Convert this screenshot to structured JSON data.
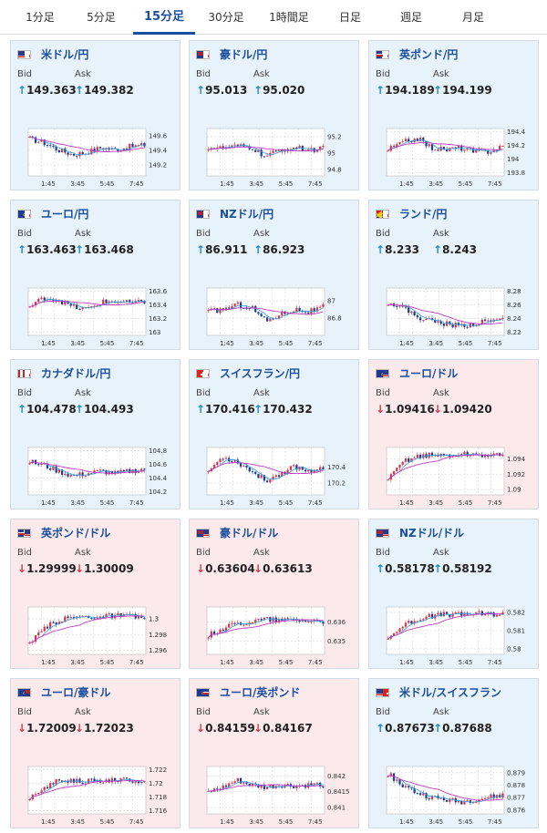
{
  "tabs": [
    {
      "label": "1分足",
      "active": false
    },
    {
      "label": "5分足",
      "active": false
    },
    {
      "label": "15分足",
      "active": true
    },
    {
      "label": "30分足",
      "active": false
    },
    {
      "label": "1時間足",
      "active": false
    },
    {
      "label": "日足",
      "active": false
    },
    {
      "label": "週足",
      "active": false
    },
    {
      "label": "月足",
      "active": false
    }
  ],
  "labels": {
    "bid": "Bid",
    "ask": "Ask"
  },
  "colors": {
    "up_arrow": "#1f8cc9",
    "down_arrow": "#d4394a",
    "candle_up": "#d4394a",
    "candle_down": "#1a3f9a",
    "ma_long": "#c13ac0",
    "ma_short": "#33a0d8",
    "title": "#1a4fa0"
  },
  "pairs": [
    {
      "name": "米ドル/円",
      "flag": "us",
      "bg": "blue",
      "dir": "up",
      "arrow": "↑",
      "bid": "149.363",
      "ask": "149.382",
      "chart_data": {
        "type": "candlestick",
        "x_ticks": [
          "1:45",
          "3:45",
          "5:45",
          "7:45"
        ],
        "y_ticks": [
          "149.6",
          "149.4",
          "149.2"
        ],
        "ylim": [
          149.05,
          149.7
        ],
        "trend": [
          0.78,
          0.7,
          0.55,
          0.45,
          0.5,
          0.6,
          0.55,
          0.62,
          0.65
        ]
      }
    },
    {
      "name": "豪ドル/円",
      "flag": "au",
      "bg": "blue",
      "dir": "up",
      "arrow": "↑",
      "bid": "95.013",
      "ask": "95.020",
      "chart_data": {
        "type": "candlestick",
        "x_ticks": [
          "1:45",
          "3:45",
          "5:45",
          "7:45"
        ],
        "y_ticks": [
          "95.2",
          "95",
          "94.8"
        ],
        "ylim": [
          94.72,
          95.3
        ],
        "trend": [
          0.6,
          0.58,
          0.62,
          0.6,
          0.4,
          0.55,
          0.6,
          0.55,
          0.58
        ]
      }
    },
    {
      "name": "英ポンド/円",
      "flag": "gb",
      "bg": "blue",
      "dir": "up",
      "arrow": "↑",
      "bid": "194.189",
      "ask": "194.199",
      "chart_data": {
        "type": "candlestick",
        "x_ticks": [
          "1:45",
          "3:45",
          "5:45",
          "7:45"
        ],
        "y_ticks": [
          "194.4",
          "194.2",
          "194",
          "193.8"
        ],
        "ylim": [
          193.75,
          194.45
        ],
        "trend": [
          0.55,
          0.7,
          0.8,
          0.6,
          0.55,
          0.6,
          0.5,
          0.52,
          0.62
        ]
      }
    },
    {
      "name": "ユーロ/円",
      "flag": "eu",
      "bg": "blue",
      "dir": "up",
      "arrow": "↑",
      "bid": "163.463",
      "ask": "163.468",
      "chart_data": {
        "type": "candlestick",
        "x_ticks": [
          "1:45",
          "3:45",
          "5:45",
          "7:45"
        ],
        "y_ticks": [
          "163.6",
          "163.4",
          "163.2",
          "163"
        ],
        "ylim": [
          162.95,
          163.65
        ],
        "trend": [
          0.6,
          0.8,
          0.75,
          0.6,
          0.55,
          0.7,
          0.72,
          0.68,
          0.7
        ]
      }
    },
    {
      "name": "NZドル/円",
      "flag": "nz",
      "bg": "blue",
      "dir": "up",
      "arrow": "↑",
      "bid": "86.911",
      "ask": "86.923",
      "chart_data": {
        "type": "candlestick",
        "x_ticks": [
          "1:45",
          "3:45",
          "5:45",
          "7:45"
        ],
        "y_ticks": [
          "87",
          "86.8"
        ],
        "ylim": [
          86.6,
          87.15
        ],
        "trend": [
          0.5,
          0.55,
          0.65,
          0.6,
          0.3,
          0.45,
          0.55,
          0.5,
          0.6
        ]
      }
    },
    {
      "name": "ランド/円",
      "flag": "za",
      "bg": "blue",
      "dir": "up",
      "arrow": "↑",
      "bid": "8.233",
      "ask": "8.243",
      "chart_data": {
        "type": "candlestick",
        "x_ticks": [
          "1:45",
          "3:45",
          "5:45",
          "7:45"
        ],
        "y_ticks": [
          "8.28",
          "8.26",
          "8.24",
          "8.22"
        ],
        "ylim": [
          8.215,
          8.285
        ],
        "trend": [
          0.7,
          0.6,
          0.4,
          0.3,
          0.25,
          0.2,
          0.25,
          0.3,
          0.35
        ]
      }
    },
    {
      "name": "カナダドル/円",
      "flag": "ca",
      "bg": "blue",
      "dir": "up",
      "arrow": "↑",
      "bid": "104.478",
      "ask": "104.493",
      "chart_data": {
        "type": "candlestick",
        "x_ticks": [
          "1:45",
          "3:45",
          "5:45",
          "7:45"
        ],
        "y_ticks": [
          "104.8",
          "104.6",
          "104.4",
          "104.2"
        ],
        "ylim": [
          104.15,
          104.85
        ],
        "trend": [
          0.7,
          0.62,
          0.5,
          0.4,
          0.45,
          0.5,
          0.45,
          0.5,
          0.55
        ]
      }
    },
    {
      "name": "スイスフラン/円",
      "flag": "ch",
      "bg": "blue",
      "dir": "up",
      "arrow": "↑",
      "bid": "170.416",
      "ask": "170.432",
      "chart_data": {
        "type": "candlestick",
        "x_ticks": [
          "1:45",
          "3:45",
          "5:45",
          "7:45"
        ],
        "y_ticks": [
          "170.4",
          "170.2"
        ],
        "ylim": [
          170.05,
          170.65
        ],
        "trend": [
          0.5,
          0.8,
          0.7,
          0.5,
          0.3,
          0.45,
          0.6,
          0.5,
          0.6
        ]
      }
    },
    {
      "name": "ユーロ/ドル",
      "flag": "euus",
      "bg": "pink",
      "dir": "down",
      "arrow": "↓",
      "bid": "1.09416",
      "ask": "1.09420",
      "chart_data": {
        "type": "candlestick",
        "x_ticks": [
          "1:45",
          "3:45",
          "5:45",
          "7:45"
        ],
        "y_ticks": [
          "1.094",
          "1.092",
          "1.09"
        ],
        "ylim": [
          1.0893,
          1.0955
        ],
        "trend": [
          0.3,
          0.7,
          0.82,
          0.84,
          0.83,
          0.86,
          0.85,
          0.84,
          0.82
        ]
      }
    },
    {
      "name": "英ポンド/ドル",
      "flag": "gbus",
      "bg": "pink",
      "dir": "down",
      "arrow": "↓",
      "bid": "1.29999",
      "ask": "1.30009",
      "chart_data": {
        "type": "candlestick",
        "x_ticks": [
          "1:45",
          "3:45",
          "5:45",
          "7:45"
        ],
        "y_ticks": [
          "1.3",
          "1.298",
          "1.296"
        ],
        "ylim": [
          1.2955,
          1.3015
        ],
        "trend": [
          0.2,
          0.55,
          0.72,
          0.78,
          0.8,
          0.8,
          0.82,
          0.8,
          0.78
        ]
      }
    },
    {
      "name": "豪ドル/ドル",
      "flag": "auus",
      "bg": "pink",
      "dir": "down",
      "arrow": "↓",
      "bid": "0.63604",
      "ask": "0.63613",
      "chart_data": {
        "type": "candlestick",
        "x_ticks": [
          "1:45",
          "3:45",
          "5:45",
          "7:45"
        ],
        "y_ticks": [
          "0.636",
          "0.635"
        ],
        "ylim": [
          0.6343,
          0.6368
        ],
        "trend": [
          0.4,
          0.55,
          0.65,
          0.7,
          0.75,
          0.72,
          0.74,
          0.72,
          0.7
        ]
      }
    },
    {
      "name": "NZドル/ドル",
      "flag": "nzus",
      "bg": "blue",
      "dir": "up",
      "arrow": "↑",
      "bid": "0.58178",
      "ask": "0.58192",
      "chart_data": {
        "type": "candlestick",
        "x_ticks": [
          "1:45",
          "3:45",
          "5:45",
          "7:45"
        ],
        "y_ticks": [
          "0.582",
          "0.581",
          "0.58"
        ],
        "ylim": [
          0.5797,
          0.5823
        ],
        "trend": [
          0.35,
          0.6,
          0.75,
          0.8,
          0.85,
          0.84,
          0.86,
          0.85,
          0.86
        ]
      }
    },
    {
      "name": "ユーロ/豪ドル",
      "flag": "euau",
      "bg": "pink",
      "dir": "down",
      "arrow": "↓",
      "bid": "1.72009",
      "ask": "1.72023",
      "chart_data": {
        "type": "candlestick",
        "x_ticks": [
          "1:45",
          "3:45",
          "5:45",
          "7:45"
        ],
        "y_ticks": [
          "1.722",
          "1.72",
          "1.718",
          "1.716"
        ],
        "ylim": [
          1.7155,
          1.7225
        ],
        "trend": [
          0.3,
          0.55,
          0.7,
          0.72,
          0.68,
          0.7,
          0.72,
          0.7,
          0.7
        ]
      }
    },
    {
      "name": "ユーロ/英ポンド",
      "flag": "eugb",
      "bg": "pink",
      "dir": "down",
      "arrow": "↓",
      "bid": "0.84159",
      "ask": "0.84167",
      "chart_data": {
        "type": "candlestick",
        "x_ticks": [
          "1:45",
          "3:45",
          "5:45",
          "7:45"
        ],
        "y_ticks": [
          "0.842",
          "0.8415",
          "0.841"
        ],
        "ylim": [
          0.8408,
          0.8423
        ],
        "trend": [
          0.45,
          0.55,
          0.7,
          0.6,
          0.55,
          0.6,
          0.58,
          0.6,
          0.62
        ]
      }
    },
    {
      "name": "米ドル/スイスフラン",
      "flag": "usch",
      "bg": "blue",
      "dir": "up",
      "arrow": "↑",
      "bid": "0.87673",
      "ask": "0.87688",
      "chart_data": {
        "type": "candlestick",
        "x_ticks": [
          "1:45",
          "3:45",
          "5:45",
          "7:45"
        ],
        "y_ticks": [
          "0.879",
          "0.878",
          "0.877",
          "0.876"
        ],
        "ylim": [
          0.8757,
          0.8795
        ],
        "trend": [
          0.85,
          0.6,
          0.45,
          0.35,
          0.3,
          0.25,
          0.3,
          0.35,
          0.4
        ]
      }
    }
  ]
}
